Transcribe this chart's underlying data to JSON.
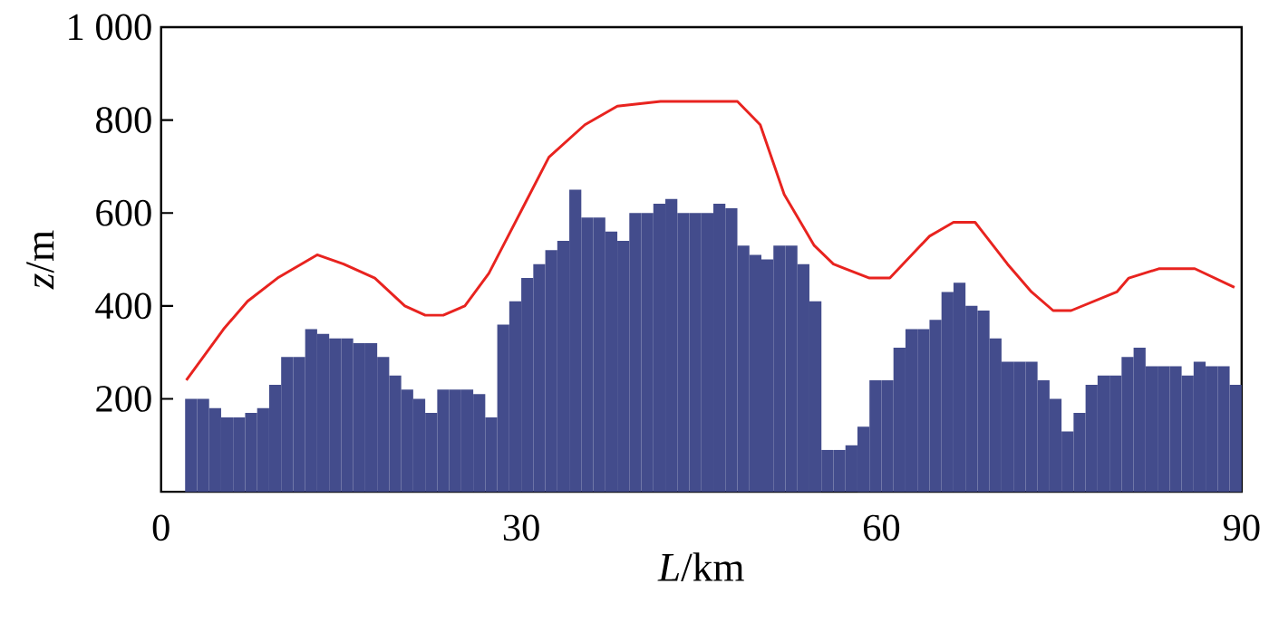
{
  "chart_data": {
    "type": "bar",
    "xlabel": "*L*/km",
    "ylabel": "*z*/m",
    "x": [
      2.5,
      3.5,
      4.5,
      5.5,
      6.5,
      7.5,
      8.5,
      9.5,
      10.5,
      11.5,
      12.5,
      13.5,
      14.5,
      15.5,
      16.5,
      17.5,
      18.5,
      19.5,
      20.5,
      21.5,
      22.5,
      23.5,
      24.5,
      25.5,
      26.5,
      27.5,
      28.5,
      29.5,
      30.5,
      31.5,
      32.5,
      33.5,
      34.5,
      35.5,
      36.5,
      37.5,
      38.5,
      39.5,
      40.5,
      41.5,
      42.5,
      43.5,
      44.5,
      45.5,
      46.5,
      47.5,
      48.5,
      49.5,
      50.5,
      51.5,
      52.5,
      53.5,
      54.5,
      55.5,
      56.5,
      57.5,
      58.5,
      59.5,
      60.5,
      61.5,
      62.5,
      63.5,
      64.5,
      65.5,
      66.5,
      67.5,
      68.5,
      69.5,
      70.5,
      71.5,
      72.5,
      73.5,
      74.5,
      75.5,
      76.5,
      77.5,
      78.5,
      79.5,
      80.5,
      81.5,
      82.5,
      83.5,
      84.5,
      85.5,
      86.5,
      87.5,
      88.5,
      89.5
    ],
    "series": [
      {
        "color": "#434c8c",
        "values": [
          200,
          200,
          180,
          160,
          160,
          170,
          180,
          230,
          290,
          290,
          350,
          340,
          330,
          330,
          320,
          320,
          290,
          250,
          220,
          200,
          170,
          220,
          220,
          220,
          210,
          160,
          360,
          410,
          460,
          490,
          520,
          540,
          650,
          590,
          590,
          560,
          540,
          600,
          600,
          620,
          630,
          600,
          600,
          600,
          620,
          610,
          530,
          510,
          500,
          530,
          530,
          490,
          410,
          90,
          90,
          100,
          140,
          240,
          240,
          310,
          350,
          350,
          370,
          430,
          450,
          400,
          390,
          330,
          280,
          280,
          280,
          240,
          200,
          130,
          170,
          230,
          250,
          250,
          290,
          310,
          270,
          270,
          270,
          250,
          280,
          270,
          270,
          230
        ]
      },
      {
        "type": "line",
        "color": "#e8231f",
        "x": [
          2.1,
          5.2,
          7.2,
          9.7,
          13.0,
          15.2,
          17.8,
          20.3,
          22.0,
          23.5,
          25.3,
          27.3,
          30.3,
          32.3,
          35.3,
          38.0,
          41.6,
          45.0,
          48.0,
          49.9,
          51.9,
          54.4,
          56.0,
          57.0,
          59.0,
          60.7,
          64.0,
          66.0,
          67.8,
          70.5,
          72.5,
          74.3,
          75.8,
          79.6,
          80.6,
          83.1,
          86.1,
          89.4
        ],
        "values": [
          240,
          350,
          410,
          460,
          510,
          490,
          460,
          400,
          380,
          380,
          400,
          470,
          620,
          720,
          790,
          830,
          840,
          840,
          840,
          790,
          640,
          530,
          490,
          480,
          460,
          460,
          550,
          580,
          580,
          490,
          430,
          390,
          390,
          430,
          460,
          480,
          480,
          440
        ]
      }
    ],
    "xlim": [
      0,
      90
    ],
    "xticks": [
      0,
      30,
      60,
      90
    ],
    "ylim": [
      0,
      1000
    ],
    "yticks": [
      200,
      400,
      600,
      800,
      {
        "value": 1000,
        "label": "1 000"
      }
    ],
    "grid": false,
    "marker": "none",
    "line_style": "solid"
  }
}
